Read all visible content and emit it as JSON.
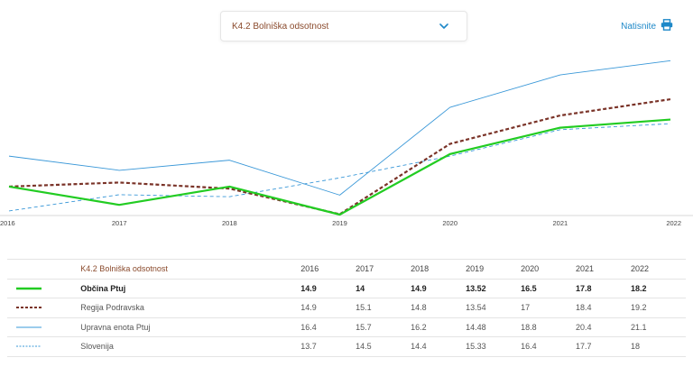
{
  "selector": {
    "label": "K4.2 Bolniška odsotnost"
  },
  "print": {
    "label": "Natisnite"
  },
  "table": {
    "title": "K4.2 Bolniška odsotnost",
    "years": [
      "2016",
      "2017",
      "2018",
      "2019",
      "2020",
      "2021",
      "2022"
    ],
    "rows": [
      {
        "name": "Občina Ptuj",
        "values": [
          "14.9",
          "14",
          "14.9",
          "13.52",
          "16.5",
          "17.8",
          "18.2"
        ]
      },
      {
        "name": "Regija Podravska",
        "values": [
          "14.9",
          "15.1",
          "14.8",
          "13.54",
          "17",
          "18.4",
          "19.2"
        ]
      },
      {
        "name": "Upravna enota Ptuj",
        "values": [
          "16.4",
          "15.7",
          "16.2",
          "14.48",
          "18.8",
          "20.4",
          "21.1"
        ]
      },
      {
        "name": "Slovenija",
        "values": [
          "13.7",
          "14.5",
          "14.4",
          "15.33",
          "16.4",
          "17.7",
          "18"
        ]
      }
    ]
  },
  "chart_data": {
    "type": "line",
    "x": [
      "2016",
      "2017",
      "2018",
      "2019",
      "2020",
      "2021",
      "2022"
    ],
    "ylim": [
      13.52,
      21.6
    ],
    "grid": false,
    "series": [
      {
        "name": "Občina Ptuj",
        "values": [
          14.9,
          14,
          14.9,
          13.52,
          16.5,
          17.8,
          18.2
        ],
        "color": "#22cc22",
        "style": "solid-thick"
      },
      {
        "name": "Regija Podravska",
        "values": [
          14.9,
          15.1,
          14.8,
          13.54,
          17,
          18.4,
          19.2
        ],
        "color": "#7a3328",
        "style": "dashed-thick"
      },
      {
        "name": "Upravna enota Ptuj",
        "values": [
          16.4,
          15.7,
          16.2,
          14.48,
          18.8,
          20.4,
          21.1
        ],
        "color": "#3a98d8",
        "style": "solid-thin"
      },
      {
        "name": "Slovenija",
        "values": [
          13.7,
          14.5,
          14.4,
          15.33,
          16.4,
          17.7,
          18
        ],
        "color": "#3a98d8",
        "style": "dashed-thin"
      }
    ]
  }
}
